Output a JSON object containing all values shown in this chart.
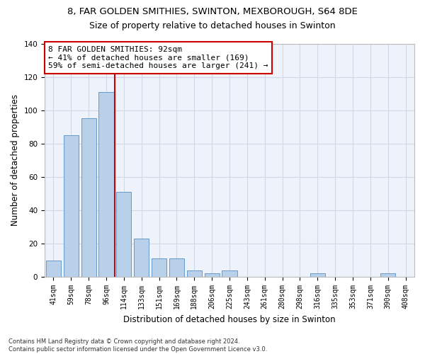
{
  "title": "8, FAR GOLDEN SMITHIES, SWINTON, MEXBOROUGH, S64 8DE",
  "subtitle": "Size of property relative to detached houses in Swinton",
  "xlabel": "Distribution of detached houses by size in Swinton",
  "ylabel": "Number of detached properties",
  "categories": [
    "41sqm",
    "59sqm",
    "78sqm",
    "96sqm",
    "114sqm",
    "133sqm",
    "151sqm",
    "169sqm",
    "188sqm",
    "206sqm",
    "225sqm",
    "243sqm",
    "261sqm",
    "280sqm",
    "298sqm",
    "316sqm",
    "335sqm",
    "353sqm",
    "371sqm",
    "390sqm",
    "408sqm"
  ],
  "values": [
    10,
    85,
    95,
    111,
    51,
    23,
    11,
    11,
    4,
    2,
    4,
    0,
    0,
    0,
    0,
    2,
    0,
    0,
    0,
    2,
    0
  ],
  "bar_color": "#b8d0ea",
  "bar_edge_color": "#6699cc",
  "grid_color": "#d0d8e8",
  "background_color": "#eef2fa",
  "vline_x": 3.5,
  "vline_color": "#cc0000",
  "annotation_text": "8 FAR GOLDEN SMITHIES: 92sqm\n← 41% of detached houses are smaller (169)\n59% of semi-detached houses are larger (241) →",
  "annotation_box_color": "#ffffff",
  "annotation_box_edge": "#cc0000",
  "footer": "Contains HM Land Registry data © Crown copyright and database right 2024.\nContains public sector information licensed under the Open Government Licence v3.0.",
  "ylim": [
    0,
    140
  ],
  "yticks": [
    0,
    20,
    40,
    60,
    80,
    100,
    120,
    140
  ],
  "title_fontsize": 9.5,
  "subtitle_fontsize": 9,
  "tick_fontsize": 7,
  "ylabel_fontsize": 8.5,
  "xlabel_fontsize": 8.5,
  "footer_fontsize": 6,
  "annot_fontsize": 8
}
